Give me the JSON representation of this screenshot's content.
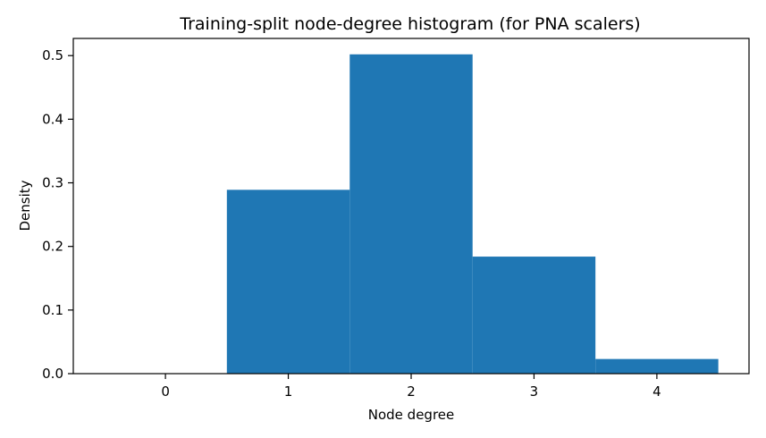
{
  "chart_data": {
    "type": "bar",
    "title": "Training-split node-degree histogram (for PNA scalers)",
    "xlabel": "Node degree",
    "ylabel": "Density",
    "categories": [
      "0",
      "1",
      "2",
      "3",
      "4"
    ],
    "x": [
      0,
      1,
      2,
      3,
      4
    ],
    "values": [
      0.0,
      0.289,
      0.502,
      0.184,
      0.023
    ],
    "bar_width": 1.0,
    "xlim": [
      -0.75,
      4.75
    ],
    "ylim": [
      0,
      0.527
    ],
    "yticks": [
      0.0,
      0.1,
      0.2,
      0.3,
      0.4,
      0.5
    ],
    "ytick_labels": [
      "0.0",
      "0.1",
      "0.2",
      "0.3",
      "0.4",
      "0.5"
    ],
    "grid": false,
    "legend": "none",
    "bar_color": "#1f77b4"
  }
}
